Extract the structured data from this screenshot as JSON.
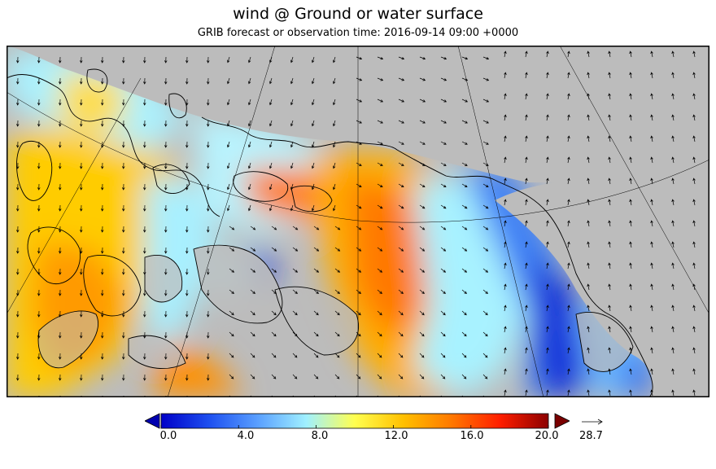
{
  "header": {
    "title": "wind @ Ground or water surface",
    "subtitle": "GRIB forecast or observation time: 2016-09-14 09:00 +0000"
  },
  "colorbar": {
    "ticks": [
      "0.0",
      "4.0",
      "8.0",
      "12.0",
      "16.0",
      "20.0"
    ],
    "min": 0,
    "max": 20,
    "stops": [
      "#0000c8",
      "#1e50f0",
      "#5aa0ff",
      "#a0f0ff",
      "#ffff50",
      "#ffc000",
      "#ff7800",
      "#ff1e00",
      "#8c0000"
    ],
    "under_color": "#0000b0",
    "over_color": "#7a0000"
  },
  "reference_vector": {
    "label": "28.7"
  },
  "colors": {
    "land": "#bcbcbc",
    "missing": "#bcbcbc",
    "frame": "#000000"
  }
}
